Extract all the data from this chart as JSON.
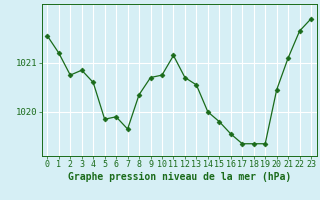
{
  "x": [
    0,
    1,
    2,
    3,
    4,
    5,
    6,
    7,
    8,
    9,
    10,
    11,
    12,
    13,
    14,
    15,
    16,
    17,
    18,
    19,
    20,
    21,
    22,
    23
  ],
  "y": [
    1021.55,
    1021.2,
    1020.75,
    1020.85,
    1020.6,
    1019.85,
    1019.9,
    1019.65,
    1020.35,
    1020.7,
    1020.75,
    1021.15,
    1020.7,
    1020.55,
    1020.0,
    1019.8,
    1019.55,
    1019.35,
    1019.35,
    1019.35,
    1020.45,
    1021.1,
    1021.65,
    1021.9
  ],
  "line_color": "#1a6b1a",
  "marker": "D",
  "marker_size": 2.5,
  "background_color": "#d6eff5",
  "grid_color": "#ffffff",
  "xlabel": "Graphe pression niveau de la mer (hPa)",
  "ylabel_ticks": [
    1020,
    1021
  ],
  "ylim": [
    1019.1,
    1022.2
  ],
  "xlim": [
    -0.5,
    23.5
  ],
  "title": "",
  "tick_label_color": "#1a6b1a",
  "xlabel_color": "#1a6b1a",
  "xlabel_fontsize": 7.0,
  "tick_fontsize": 6.0,
  "ytick_fontsize": 6.5
}
